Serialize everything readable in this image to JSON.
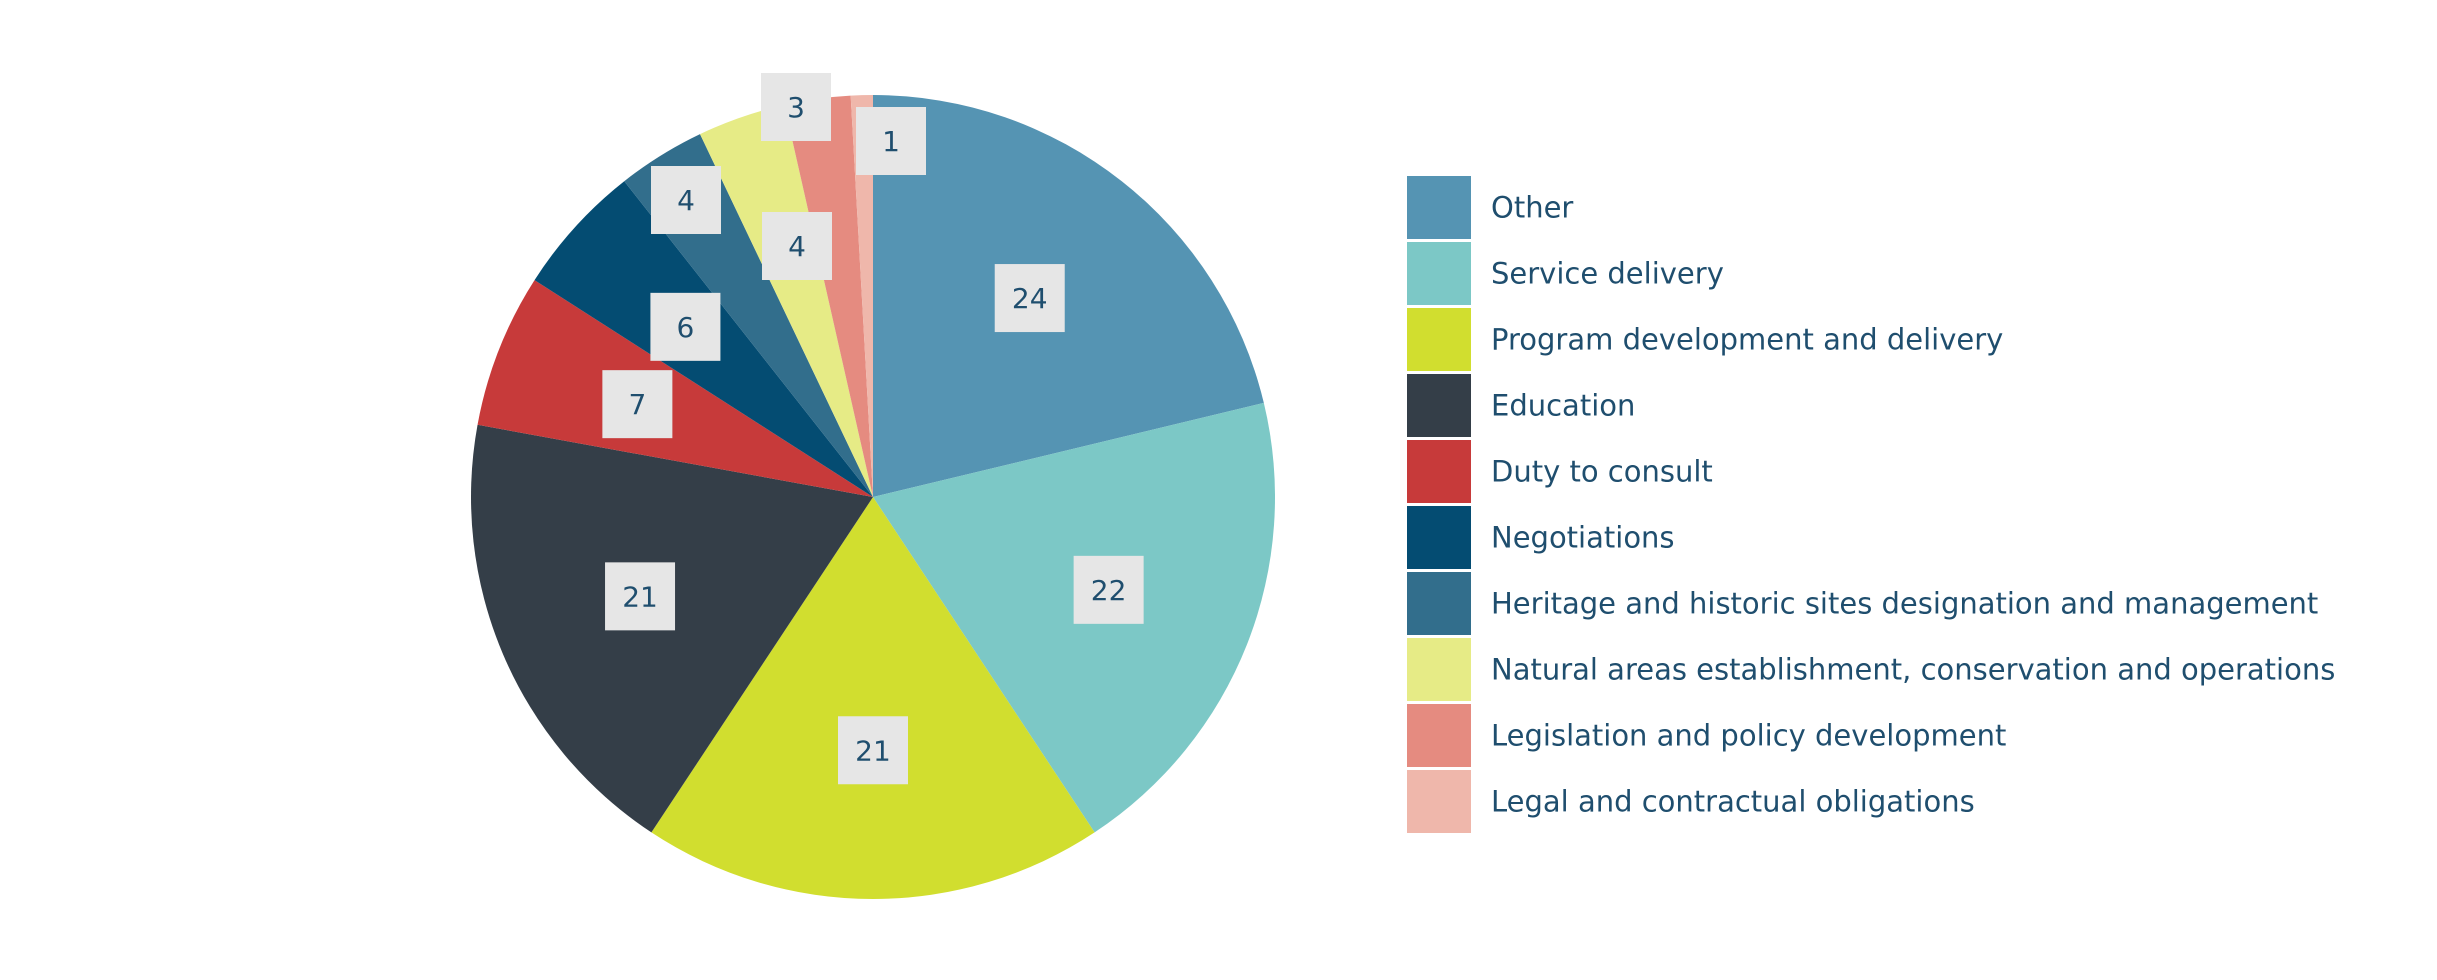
{
  "chart_data": {
    "type": "pie",
    "title": "",
    "start_angle": "12 o'clock",
    "direction": "clockwise",
    "legend_position": "right",
    "slices": [
      {
        "label": "Other",
        "value": 24,
        "display": "24",
        "color": "#5594b3"
      },
      {
        "label": "Service delivery",
        "value": 22,
        "display": "22",
        "color": "#7cc8c6"
      },
      {
        "label": "Program development and delivery",
        "value": 21,
        "display": "21",
        "color": "#d1de2f"
      },
      {
        "label": "Education",
        "value": 21,
        "display": "21",
        "color": "#343e48"
      },
      {
        "label": "Duty to consult",
        "value": 7,
        "display": "7",
        "color": "#c73a3a"
      },
      {
        "label": "Negotiations",
        "value": 6,
        "display": "6",
        "color": "#044c72"
      },
      {
        "label": "Heritage and historic sites designation and management",
        "value": 4,
        "display": "4",
        "color": "#326e8c"
      },
      {
        "label": "Natural areas establishment, conservation and operations",
        "value": 4,
        "display": "4",
        "color": "#e6eb86"
      },
      {
        "label": "Legislation and policy development",
        "value": 3,
        "display": "3",
        "color": "#e58b80"
      },
      {
        "label": "Legal and contractual obligations",
        "value": 1,
        "display": "1",
        "color": "#efb7ab"
      }
    ]
  }
}
